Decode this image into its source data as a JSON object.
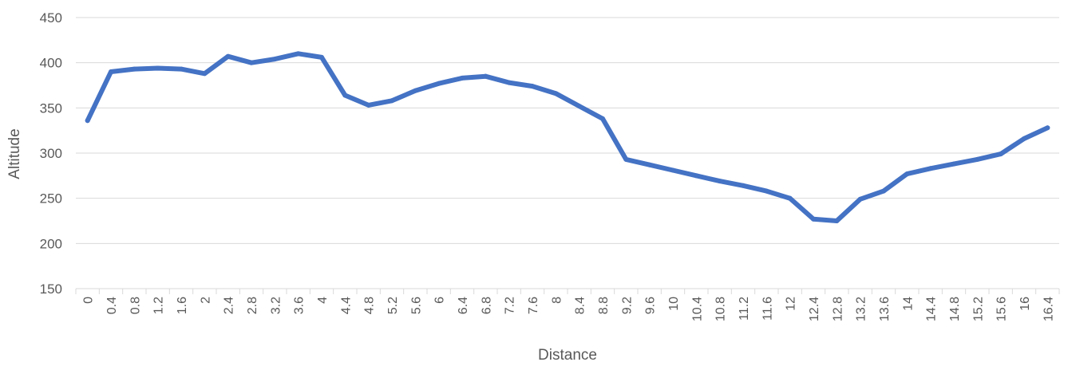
{
  "chart_data": {
    "type": "line",
    "xlabel": "Distance",
    "ylabel": "Altitude",
    "ylim": [
      150,
      450
    ],
    "yticks": [
      150,
      200,
      250,
      300,
      350,
      400,
      450
    ],
    "grid": true,
    "legend": "none",
    "colors": {
      "series": "#4472C4",
      "grid": "#d9d9d9",
      "text": "#595959"
    },
    "categories": [
      "0",
      "0.4",
      "0.8",
      "1.2",
      "1.6",
      "2",
      "2.4",
      "2.8",
      "3.2",
      "3.6",
      "4",
      "4.4",
      "4.8",
      "5.2",
      "5.6",
      "6",
      "6.4",
      "6.8",
      "7.2",
      "7.6",
      "8",
      "8.4",
      "8.8",
      "9.2",
      "9.6",
      "10",
      "10.4",
      "10.8",
      "11.2",
      "11.6",
      "12",
      "12.4",
      "12.8",
      "13.2",
      "13.6",
      "14",
      "14.4",
      "14.8",
      "15.2",
      "15.6",
      "16",
      "16.4"
    ],
    "series": [
      {
        "values": [
          336,
          390,
          393,
          394,
          393,
          388,
          407,
          400,
          404,
          410,
          406,
          364,
          353,
          358,
          369,
          377,
          383,
          385,
          378,
          374,
          366,
          352,
          338,
          293,
          287,
          281,
          275,
          269,
          264,
          258,
          250,
          227,
          225,
          249,
          258,
          277,
          283,
          288,
          293,
          299,
          316,
          328
        ]
      }
    ]
  }
}
